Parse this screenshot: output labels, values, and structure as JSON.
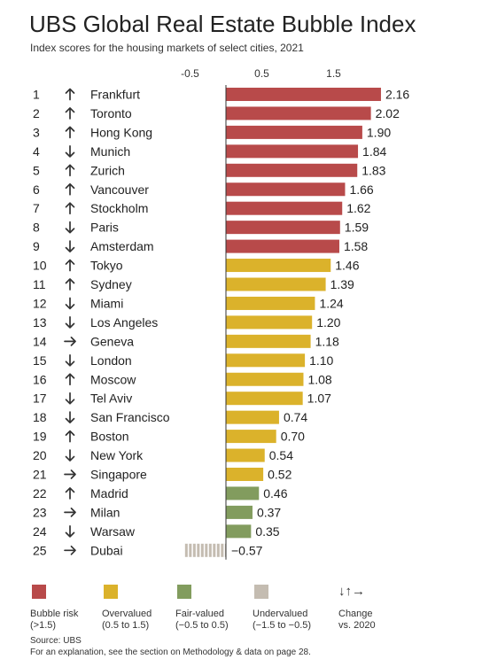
{
  "title": "UBS Global Real Estate Bubble Index",
  "subtitle": "Index scores for the housing markets of select cities, 2021",
  "colors": {
    "bubble": "#b84a4a",
    "overvalued": "#dbb22b",
    "fair": "#829c5e",
    "undervalued": "#c4bcb1",
    "text": "#222222"
  },
  "chart_data": {
    "type": "bar",
    "orientation": "horizontal",
    "title": "UBS Global Real Estate Bubble Index",
    "subtitle": "Index scores for the housing markets of select cities, 2021",
    "x_ticks": [
      -0.5,
      0.5,
      1.5
    ],
    "x_tick_labels": [
      "-0.5",
      "0.5",
      "1.5"
    ],
    "xlim": [
      -0.6,
      2.3
    ],
    "rows": [
      {
        "rank": "1",
        "arrow": "up",
        "city": "Frankfurt",
        "value": 2.16,
        "label": "2.16",
        "category": "bubble"
      },
      {
        "rank": "2",
        "arrow": "up",
        "city": "Toronto",
        "value": 2.02,
        "label": "2.02",
        "category": "bubble"
      },
      {
        "rank": "3",
        "arrow": "up",
        "city": "Hong Kong",
        "value": 1.9,
        "label": "1.90",
        "category": "bubble"
      },
      {
        "rank": "4",
        "arrow": "down",
        "city": "Munich",
        "value": 1.84,
        "label": "1.84",
        "category": "bubble"
      },
      {
        "rank": "5",
        "arrow": "up",
        "city": "Zurich",
        "value": 1.83,
        "label": "1.83",
        "category": "bubble"
      },
      {
        "rank": "6",
        "arrow": "up",
        "city": "Vancouver",
        "value": 1.66,
        "label": "1.66",
        "category": "bubble"
      },
      {
        "rank": "7",
        "arrow": "up",
        "city": "Stockholm",
        "value": 1.62,
        "label": "1.62",
        "category": "bubble"
      },
      {
        "rank": "8",
        "arrow": "down",
        "city": "Paris",
        "value": 1.59,
        "label": "1.59",
        "category": "bubble"
      },
      {
        "rank": "9",
        "arrow": "down",
        "city": "Amsterdam",
        "value": 1.58,
        "label": "1.58",
        "category": "bubble"
      },
      {
        "rank": "10",
        "arrow": "up",
        "city": "Tokyo",
        "value": 1.46,
        "label": "1.46",
        "category": "overvalued"
      },
      {
        "rank": "11",
        "arrow": "up",
        "city": "Sydney",
        "value": 1.39,
        "label": "1.39",
        "category": "overvalued"
      },
      {
        "rank": "12",
        "arrow": "down",
        "city": "Miami",
        "value": 1.24,
        "label": "1.24",
        "category": "overvalued"
      },
      {
        "rank": "13",
        "arrow": "down",
        "city": "Los Angeles",
        "value": 1.2,
        "label": "1.20",
        "category": "overvalued"
      },
      {
        "rank": "14",
        "arrow": "right",
        "city": "Geneva",
        "value": 1.18,
        "label": "1.18",
        "category": "overvalued"
      },
      {
        "rank": "15",
        "arrow": "down",
        "city": "London",
        "value": 1.1,
        "label": "1.10",
        "category": "overvalued"
      },
      {
        "rank": "16",
        "arrow": "up",
        "city": "Moscow",
        "value": 1.08,
        "label": "1.08",
        "category": "overvalued"
      },
      {
        "rank": "17",
        "arrow": "down",
        "city": "Tel Aviv",
        "value": 1.07,
        "label": "1.07",
        "category": "overvalued"
      },
      {
        "rank": "18",
        "arrow": "down",
        "city": "San Francisco",
        "value": 0.74,
        "label": "0.74",
        "category": "overvalued"
      },
      {
        "rank": "19",
        "arrow": "up",
        "city": "Boston",
        "value": 0.7,
        "label": "0.70",
        "category": "overvalued"
      },
      {
        "rank": "20",
        "arrow": "down",
        "city": "New York",
        "value": 0.54,
        "label": "0.54",
        "category": "overvalued"
      },
      {
        "rank": "21",
        "arrow": "right",
        "city": "Singapore",
        "value": 0.52,
        "label": "0.52",
        "category": "overvalued"
      },
      {
        "rank": "22",
        "arrow": "up",
        "city": "Madrid",
        "value": 0.46,
        "label": "0.46",
        "category": "fair"
      },
      {
        "rank": "23",
        "arrow": "right",
        "city": "Milan",
        "value": 0.37,
        "label": "0.37",
        "category": "fair"
      },
      {
        "rank": "24",
        "arrow": "down",
        "city": "Warsaw",
        "value": 0.35,
        "label": "0.35",
        "category": "fair"
      },
      {
        "rank": "25",
        "arrow": "right",
        "city": "Dubai",
        "value": -0.57,
        "label": "−0.57",
        "category": "undervalued"
      }
    ]
  },
  "legend": {
    "items": [
      {
        "key": "bubble",
        "line1": "Bubble risk",
        "line2": "(>1.5)"
      },
      {
        "key": "overvalued",
        "line1": "Overvalued",
        "line2": "(0.5 to 1.5)"
      },
      {
        "key": "fair",
        "line1": "Fair-valued",
        "line2": "(−0.5 to 0.5)"
      },
      {
        "key": "undervalued",
        "line1": "Undervalued",
        "line2": "(−1.5 to −0.5)"
      }
    ],
    "change": {
      "arrows": "↓↑→",
      "line1": "Change",
      "line2": "vs. 2020"
    }
  },
  "footer": {
    "source": "Source: UBS",
    "note": "For an explanation, see the section on Methodology & data on page 28."
  }
}
